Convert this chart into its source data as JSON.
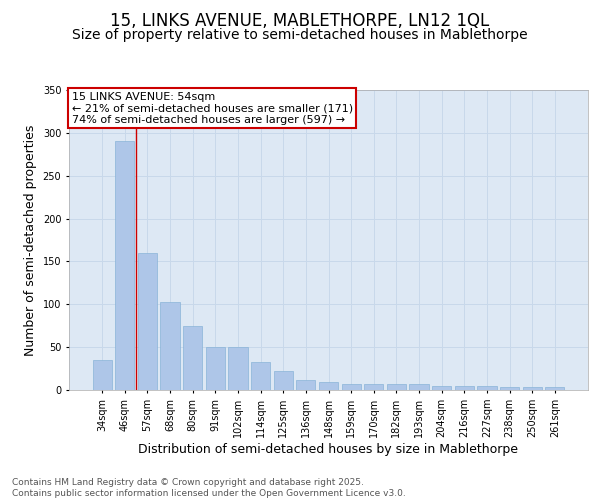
{
  "title_line1": "15, LINKS AVENUE, MABLETHORPE, LN12 1QL",
  "title_line2": "Size of property relative to semi-detached houses in Mablethorpe",
  "xlabel": "Distribution of semi-detached houses by size in Mablethorpe",
  "ylabel": "Number of semi-detached properties",
  "categories": [
    "34sqm",
    "46sqm",
    "57sqm",
    "68sqm",
    "80sqm",
    "91sqm",
    "102sqm",
    "114sqm",
    "125sqm",
    "136sqm",
    "148sqm",
    "159sqm",
    "170sqm",
    "182sqm",
    "193sqm",
    "204sqm",
    "216sqm",
    "227sqm",
    "238sqm",
    "250sqm",
    "261sqm"
  ],
  "values": [
    35,
    290,
    160,
    103,
    75,
    50,
    50,
    33,
    22,
    12,
    9,
    7,
    7,
    7,
    7,
    5,
    5,
    5,
    3,
    3,
    3
  ],
  "bar_color": "#aec6e8",
  "bar_edge_color": "#8ab4d8",
  "grid_color": "#c8d8ea",
  "background_color": "#dde8f4",
  "annotation_box_text": "15 LINKS AVENUE: 54sqm\n← 21% of semi-detached houses are smaller (171)\n74% of semi-detached houses are larger (597) →",
  "annotation_box_color": "#ffffff",
  "annotation_box_edge_color": "#cc0000",
  "property_line_x": 1.5,
  "ylim": [
    0,
    350
  ],
  "yticks": [
    0,
    50,
    100,
    150,
    200,
    250,
    300,
    350
  ],
  "footer_text": "Contains HM Land Registry data © Crown copyright and database right 2025.\nContains public sector information licensed under the Open Government Licence v3.0.",
  "title_fontsize": 12,
  "subtitle_fontsize": 10,
  "axis_label_fontsize": 9,
  "tick_fontsize": 7,
  "footer_fontsize": 6.5,
  "annot_fontsize": 8
}
